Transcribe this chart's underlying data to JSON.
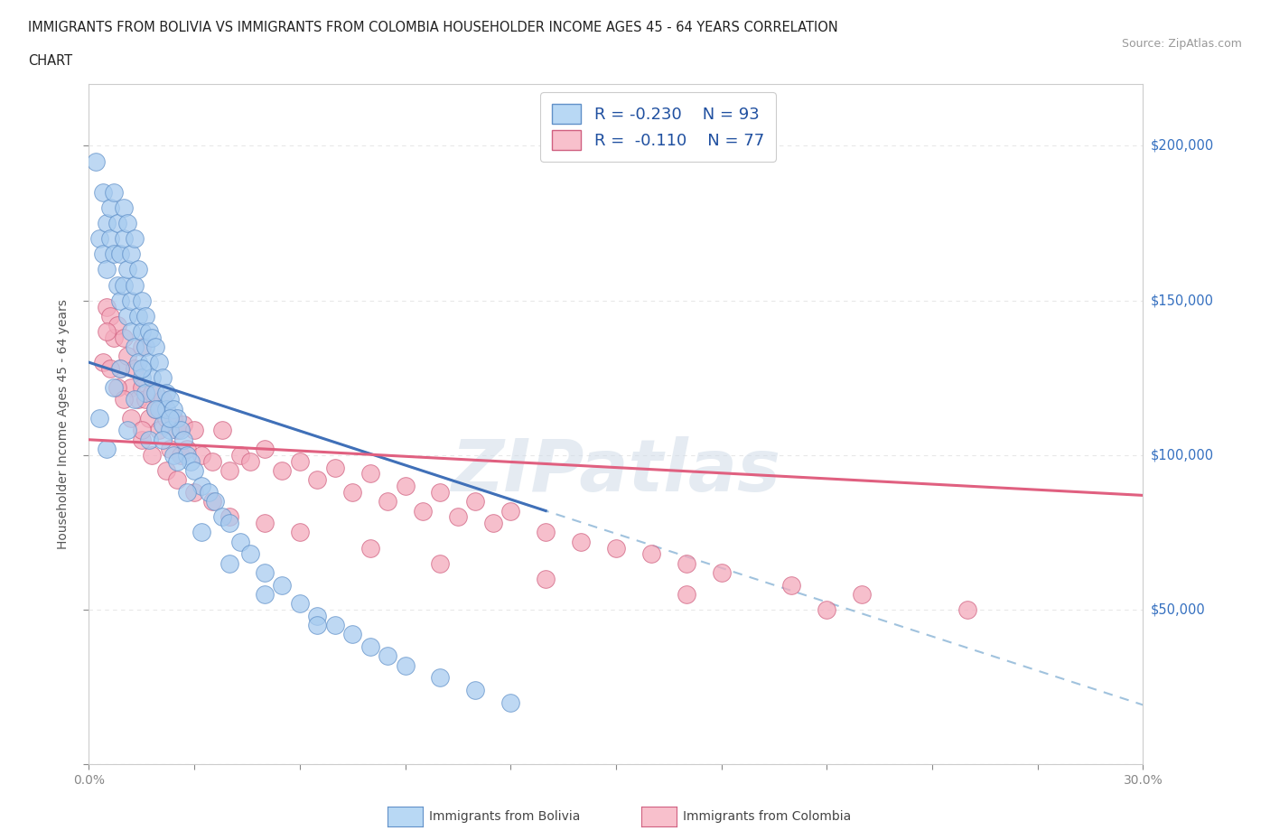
{
  "title_line1": "IMMIGRANTS FROM BOLIVIA VS IMMIGRANTS FROM COLOMBIA HOUSEHOLDER INCOME AGES 45 - 64 YEARS CORRELATION",
  "title_line2": "CHART",
  "source_text": "Source: ZipAtlas.com",
  "ylabel": "Householder Income Ages 45 - 64 years",
  "xlim": [
    0.0,
    0.3
  ],
  "ylim": [
    0,
    220000
  ],
  "xticks": [
    0.0,
    0.03,
    0.06,
    0.09,
    0.12,
    0.15,
    0.18,
    0.21,
    0.24,
    0.27,
    0.3
  ],
  "ytick_positions": [
    0,
    50000,
    100000,
    150000,
    200000
  ],
  "ytick_labels": [
    "",
    "$50,000",
    "$100,000",
    "$150,000",
    "$200,000"
  ],
  "bolivia_color": "#A8CCF0",
  "colombia_color": "#F4AABC",
  "bolivia_edge": "#6090C8",
  "colombia_edge": "#D06080",
  "bolivia_line_color": "#4070B8",
  "colombia_line_color": "#E06080",
  "dashed_line_color": "#90B8D8",
  "legend_bolivia_face": "#B8D8F4",
  "legend_colombia_face": "#F8C0CC",
  "R_bolivia": -0.23,
  "N_bolivia": 93,
  "R_colombia": -0.11,
  "N_colombia": 77,
  "bolivia_scatter_x": [
    0.002,
    0.003,
    0.004,
    0.004,
    0.005,
    0.005,
    0.006,
    0.006,
    0.007,
    0.007,
    0.008,
    0.008,
    0.009,
    0.009,
    0.01,
    0.01,
    0.01,
    0.011,
    0.011,
    0.011,
    0.012,
    0.012,
    0.012,
    0.013,
    0.013,
    0.013,
    0.014,
    0.014,
    0.014,
    0.015,
    0.015,
    0.015,
    0.016,
    0.016,
    0.016,
    0.017,
    0.017,
    0.018,
    0.018,
    0.019,
    0.019,
    0.02,
    0.02,
    0.021,
    0.021,
    0.022,
    0.022,
    0.023,
    0.023,
    0.024,
    0.024,
    0.025,
    0.026,
    0.027,
    0.028,
    0.029,
    0.03,
    0.032,
    0.034,
    0.036,
    0.038,
    0.04,
    0.043,
    0.046,
    0.05,
    0.055,
    0.06,
    0.065,
    0.07,
    0.075,
    0.08,
    0.09,
    0.1,
    0.11,
    0.12,
    0.003,
    0.005,
    0.007,
    0.009,
    0.011,
    0.013,
    0.015,
    0.017,
    0.019,
    0.021,
    0.023,
    0.025,
    0.028,
    0.032,
    0.04,
    0.05,
    0.065,
    0.085
  ],
  "bolivia_scatter_y": [
    195000,
    170000,
    165000,
    185000,
    175000,
    160000,
    170000,
    180000,
    165000,
    185000,
    155000,
    175000,
    165000,
    150000,
    170000,
    155000,
    180000,
    160000,
    145000,
    175000,
    150000,
    165000,
    140000,
    155000,
    135000,
    170000,
    145000,
    160000,
    130000,
    150000,
    140000,
    125000,
    145000,
    135000,
    120000,
    140000,
    130000,
    138000,
    125000,
    135000,
    120000,
    130000,
    115000,
    125000,
    110000,
    120000,
    115000,
    118000,
    108000,
    115000,
    100000,
    112000,
    108000,
    105000,
    100000,
    98000,
    95000,
    90000,
    88000,
    85000,
    80000,
    78000,
    72000,
    68000,
    62000,
    58000,
    52000,
    48000,
    45000,
    42000,
    38000,
    32000,
    28000,
    24000,
    20000,
    112000,
    102000,
    122000,
    128000,
    108000,
    118000,
    128000,
    105000,
    115000,
    105000,
    112000,
    98000,
    88000,
    75000,
    65000,
    55000,
    45000,
    35000
  ],
  "colombia_scatter_x": [
    0.004,
    0.005,
    0.006,
    0.007,
    0.008,
    0.009,
    0.01,
    0.011,
    0.012,
    0.013,
    0.014,
    0.015,
    0.015,
    0.016,
    0.017,
    0.018,
    0.019,
    0.02,
    0.021,
    0.022,
    0.023,
    0.024,
    0.025,
    0.026,
    0.027,
    0.028,
    0.03,
    0.032,
    0.035,
    0.038,
    0.04,
    0.043,
    0.046,
    0.05,
    0.055,
    0.06,
    0.065,
    0.07,
    0.075,
    0.08,
    0.085,
    0.09,
    0.095,
    0.1,
    0.105,
    0.11,
    0.115,
    0.12,
    0.13,
    0.14,
    0.15,
    0.16,
    0.17,
    0.18,
    0.2,
    0.22,
    0.25,
    0.006,
    0.008,
    0.01,
    0.012,
    0.015,
    0.018,
    0.022,
    0.025,
    0.03,
    0.035,
    0.04,
    0.05,
    0.06,
    0.08,
    0.1,
    0.13,
    0.17,
    0.21,
    0.005,
    0.015
  ],
  "colombia_scatter_y": [
    130000,
    148000,
    145000,
    138000,
    142000,
    128000,
    138000,
    132000,
    122000,
    128000,
    118000,
    135000,
    122000,
    118000,
    112000,
    120000,
    115000,
    108000,
    118000,
    112000,
    102000,
    112000,
    108000,
    100000,
    110000,
    102000,
    108000,
    100000,
    98000,
    108000,
    95000,
    100000,
    98000,
    102000,
    95000,
    98000,
    92000,
    96000,
    88000,
    94000,
    85000,
    90000,
    82000,
    88000,
    80000,
    85000,
    78000,
    82000,
    75000,
    72000,
    70000,
    68000,
    65000,
    62000,
    58000,
    55000,
    50000,
    128000,
    122000,
    118000,
    112000,
    105000,
    100000,
    95000,
    92000,
    88000,
    85000,
    80000,
    78000,
    75000,
    70000,
    65000,
    60000,
    55000,
    50000,
    140000,
    108000
  ],
  "watermark_text": "ZIPatlas",
  "background_color": "#FFFFFF",
  "plot_background": "#FFFFFF",
  "grid_color": "#E8E8E8"
}
